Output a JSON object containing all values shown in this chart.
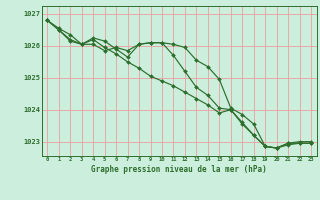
{
  "title": "Graphe pression niveau de la mer (hPa)",
  "bg_color": "#cceedc",
  "grid_color": "#e8a0a0",
  "line_color": "#2d6e2d",
  "marker_color": "#2d6e2d",
  "xlim": [
    -0.5,
    23.5
  ],
  "ylim": [
    1022.55,
    1027.25
  ],
  "yticks": [
    1023,
    1024,
    1025,
    1026,
    1027
  ],
  "xticks": [
    0,
    1,
    2,
    3,
    4,
    5,
    6,
    7,
    8,
    9,
    10,
    11,
    12,
    13,
    14,
    15,
    16,
    17,
    18,
    19,
    20,
    21,
    22,
    23
  ],
  "series": [
    [
      1026.8,
      1026.55,
      1026.35,
      1026.05,
      1026.05,
      1025.85,
      1025.95,
      1025.85,
      1026.05,
      1026.1,
      1026.1,
      1026.05,
      1025.95,
      1025.55,
      1025.35,
      1024.95,
      1024.05,
      1023.85,
      1023.55,
      1022.85,
      1022.8,
      1022.95,
      1023.0,
      1023.0
    ],
    [
      1026.8,
      1026.5,
      1026.2,
      1026.05,
      1026.25,
      1026.15,
      1025.9,
      1025.65,
      1026.05,
      1026.1,
      1026.1,
      1025.7,
      1025.2,
      1024.7,
      1024.45,
      1024.05,
      1024.0,
      1023.6,
      1023.2,
      1022.85,
      1022.8,
      1022.95,
      1022.95,
      1022.95
    ],
    [
      1026.8,
      1026.5,
      1026.15,
      1026.05,
      1026.2,
      1025.95,
      1025.75,
      1025.5,
      1025.3,
      1025.05,
      1024.9,
      1024.75,
      1024.55,
      1024.35,
      1024.15,
      1023.9,
      1024.0,
      1023.55,
      1023.2,
      1022.85,
      1022.8,
      1022.9,
      1022.95,
      1022.95
    ]
  ]
}
